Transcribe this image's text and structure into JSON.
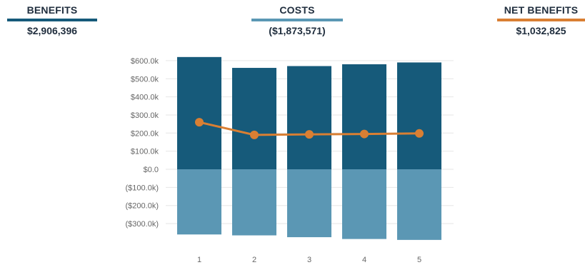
{
  "kpis": {
    "benefits": {
      "label": "BENEFITS",
      "value": "$2,906,396",
      "color": "#165a7a"
    },
    "costs": {
      "label": "COSTS",
      "value": "($1,873,571)",
      "color": "#5b97b4"
    },
    "net": {
      "label": "NET BENEFITS",
      "value": "$1,032,825",
      "color": "#d97f33"
    }
  },
  "chart_data": {
    "type": "bar",
    "categories": [
      "1",
      "2",
      "3",
      "4",
      "5"
    ],
    "series": [
      {
        "values": [
          620,
          560,
          570,
          580,
          590
        ],
        "color": "#165a7a"
      },
      {
        "values": [
          -360,
          -365,
          -375,
          -385,
          -390
        ],
        "color": "#5b97b4"
      },
      {
        "type": "line",
        "values": [
          260,
          190,
          193,
          195,
          198
        ],
        "color": "#d97f33"
      }
    ],
    "stacked": true,
    "y_ticks": [
      "$600.0k",
      "$500.0k",
      "$400.0k",
      "$300.0k",
      "$200.0k",
      "$100.0k",
      "$0.0",
      "($100.0k)",
      "($200.0k)",
      "($300.0k)"
    ],
    "y_tick_values": [
      600,
      500,
      400,
      300,
      200,
      100,
      0,
      -100,
      -200,
      -300
    ],
    "ylim": [
      -390,
      620
    ],
    "grid": true
  }
}
